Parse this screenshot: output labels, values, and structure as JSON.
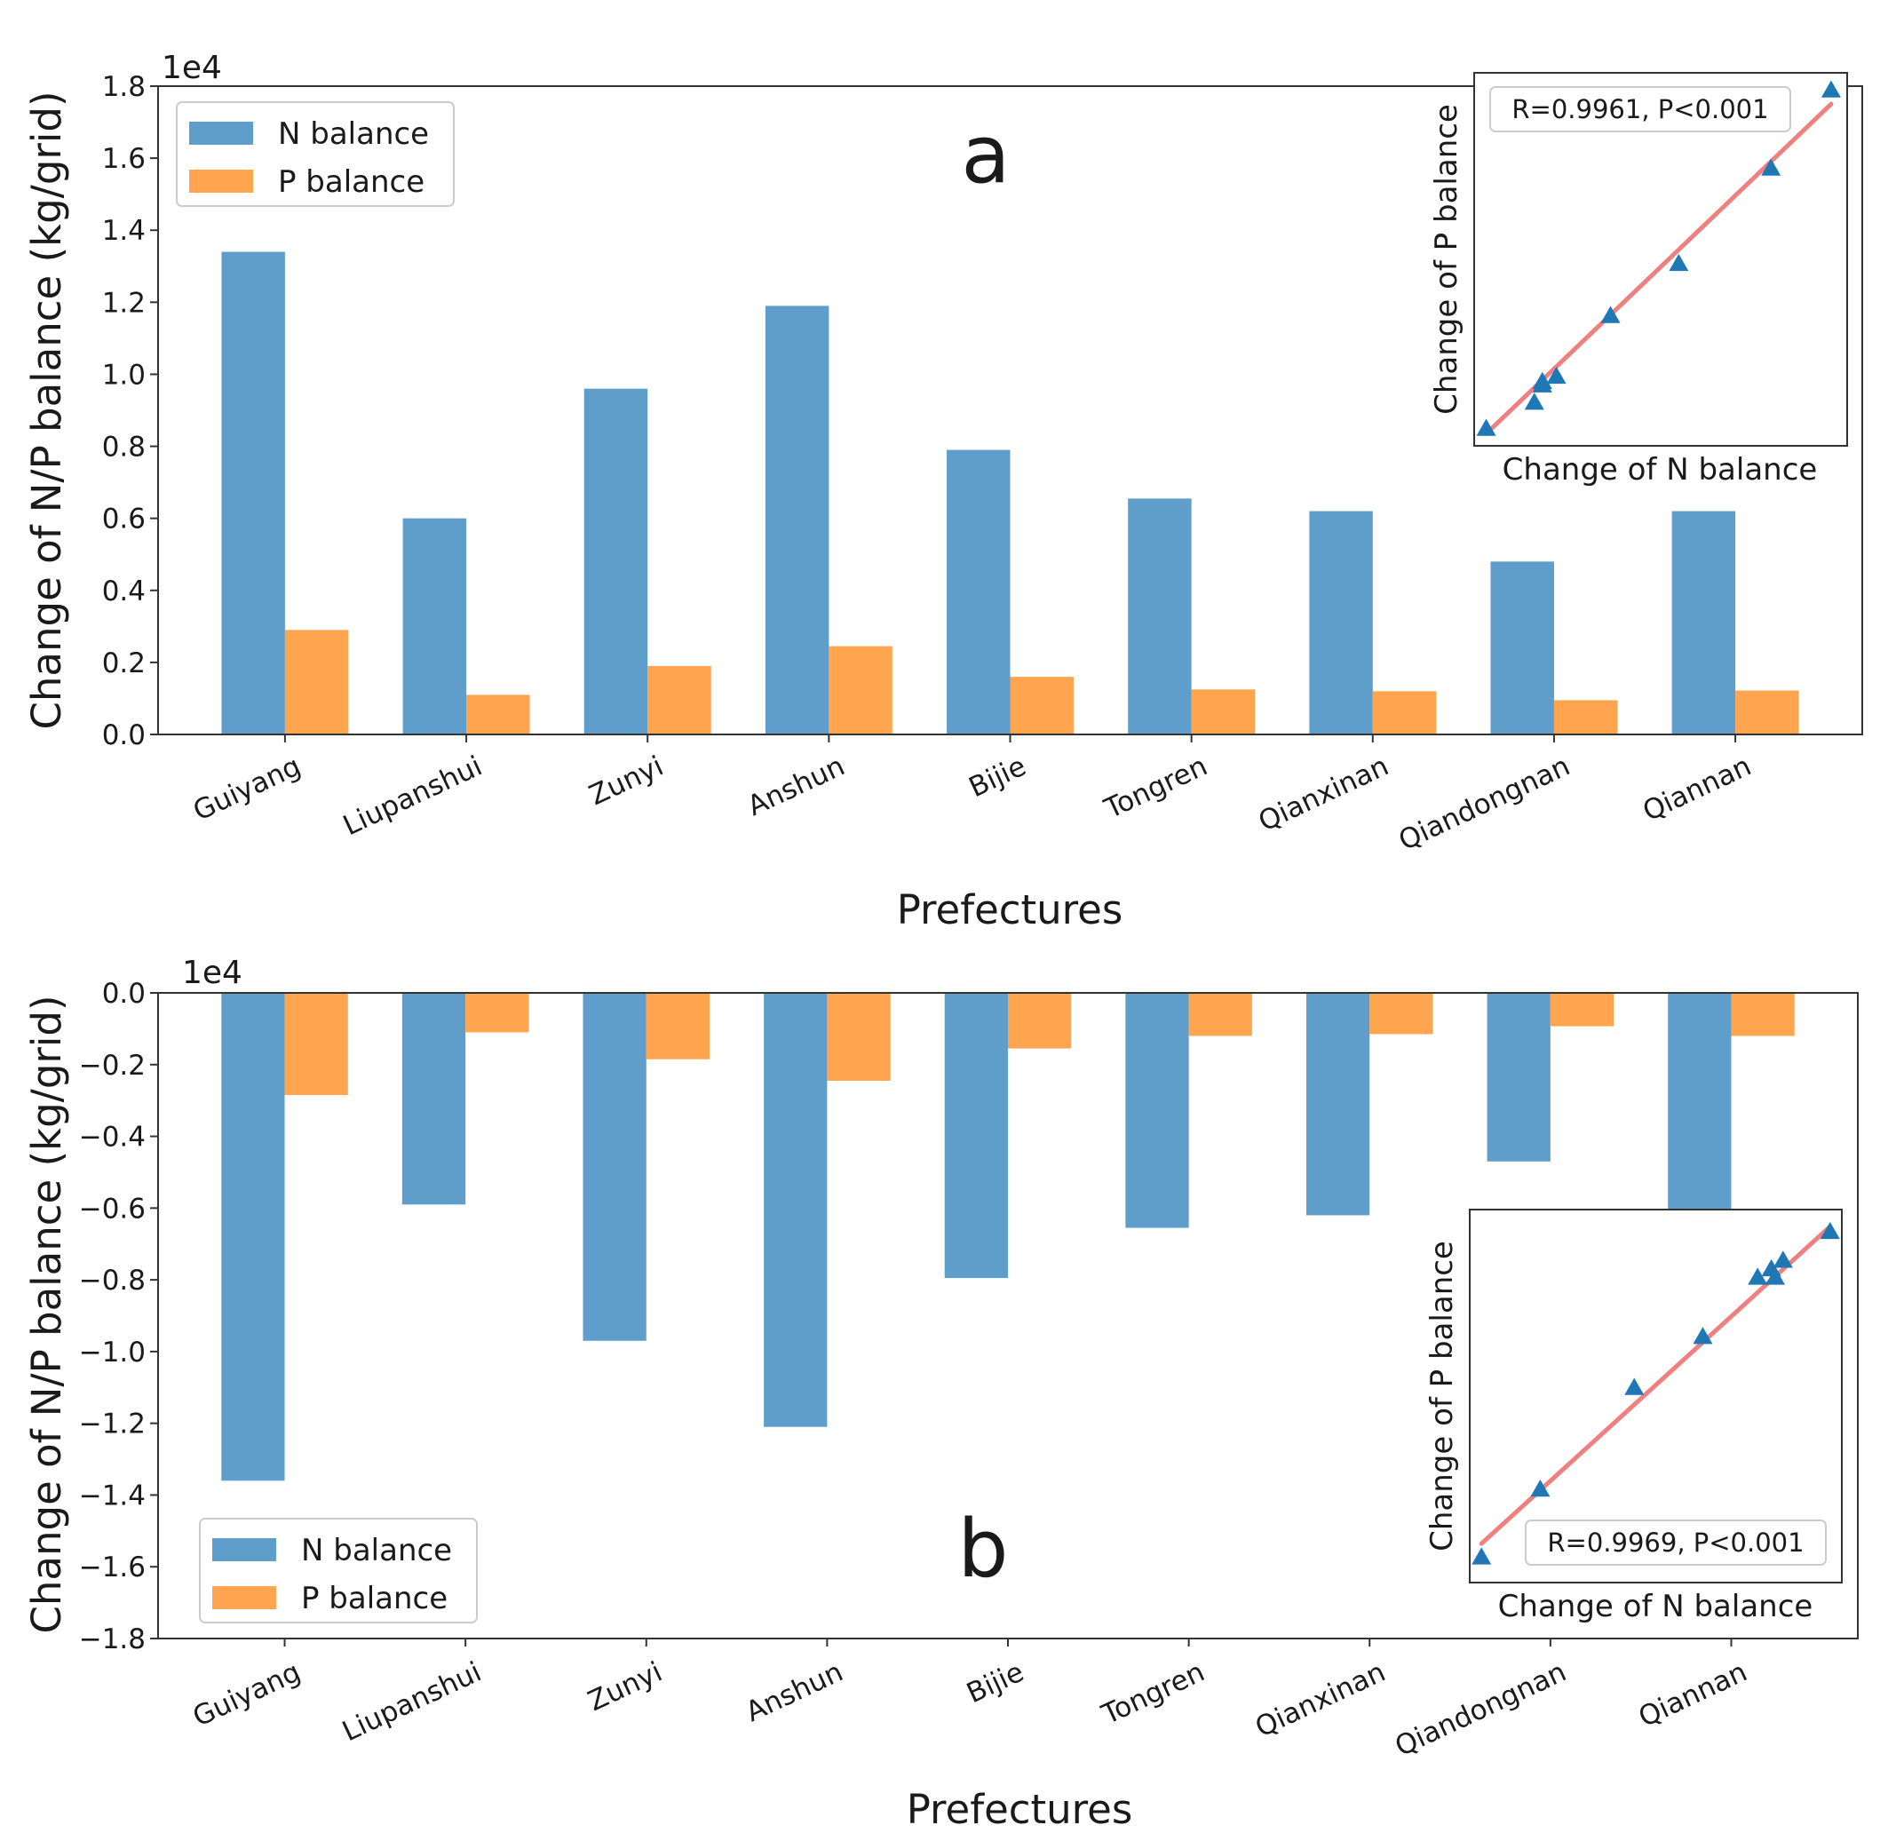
{
  "chart_data": [
    {
      "type": "bar",
      "panel_label": "a",
      "axis_multiplier": "1e4",
      "xlabel": "Prefectures",
      "ylabel": "Change of N/P balance (kg/grid)",
      "ylim": [
        0.0,
        1.8
      ],
      "yticks": [
        "0.0",
        "0.2",
        "0.4",
        "0.6",
        "0.8",
        "1.0",
        "1.2",
        "1.4",
        "1.6",
        "1.8"
      ],
      "categories": [
        "Guiyang",
        "Liupanshui",
        "Zunyi",
        "Anshun",
        "Bijie",
        "Tongren",
        "Qianxinan",
        "Qiandongnan",
        "Qiannan"
      ],
      "series": [
        {
          "name": "N balance",
          "color": "#5f9ecb",
          "values": [
            1.34,
            0.6,
            0.96,
            1.19,
            0.79,
            0.655,
            0.62,
            0.48,
            0.62
          ]
        },
        {
          "name": "P balance",
          "color": "#ffa54f",
          "values": [
            0.29,
            0.11,
            0.19,
            0.245,
            0.16,
            0.125,
            0.12,
            0.095,
            0.122
          ]
        }
      ],
      "legend": "upper-left",
      "inset": {
        "type": "scatter",
        "xlabel": "Change of N balance",
        "ylabel": "Change of P balance",
        "annotation": "R=0.9961, P<0.001",
        "point_color": "#1f77b4",
        "line_color": "#f08080",
        "xlim": [
          0.45,
          1.38
        ],
        "ylim": [
          0.085,
          0.3
        ],
        "x": [
          0.48,
          0.6,
          0.62,
          0.62,
          0.655,
          0.79,
          0.96,
          1.19,
          1.34
        ],
        "y": [
          0.095,
          0.11,
          0.12,
          0.122,
          0.125,
          0.16,
          0.19,
          0.245,
          0.29
        ],
        "fit": [
          [
            0.48,
            0.092
          ],
          [
            1.34,
            0.282
          ]
        ]
      }
    },
    {
      "type": "bar",
      "panel_label": "b",
      "axis_multiplier": "1e4",
      "xlabel": "Prefectures",
      "ylabel": "Change of N/P balance (kg/grid)",
      "ylim": [
        -1.8,
        0.0
      ],
      "yticks": [
        "0.0",
        "−0.2",
        "−0.4",
        "−0.6",
        "−0.8",
        "−1.0",
        "−1.2",
        "−1.4",
        "−1.6",
        "−1.8"
      ],
      "categories": [
        "Guiyang",
        "Liupanshui",
        "Zunyi",
        "Anshun",
        "Bijie",
        "Tongren",
        "Qianxinan",
        "Qiandongnan",
        "Qiannan"
      ],
      "series": [
        {
          "name": "N balance",
          "color": "#5f9ecb",
          "values": [
            -1.36,
            -0.59,
            -0.97,
            -1.21,
            -0.795,
            -0.655,
            -0.62,
            -0.47,
            -0.61
          ]
        },
        {
          "name": "P balance",
          "color": "#ffa54f",
          "values": [
            -0.285,
            -0.11,
            -0.185,
            -0.245,
            -0.155,
            -0.12,
            -0.115,
            -0.093,
            -0.12
          ]
        }
      ],
      "legend": "lower-left",
      "inset": {
        "type": "scatter",
        "xlabel": "Change of N balance",
        "ylabel": "Change of P balance",
        "annotation": "R=0.9969, P<0.001",
        "point_color": "#1f77b4",
        "line_color": "#f08080",
        "xlim": [
          -1.39,
          -0.44
        ],
        "ylim": [
          -0.3,
          -0.08
        ],
        "x": [
          -1.36,
          -1.21,
          -0.97,
          -0.795,
          -0.655,
          -0.62,
          -0.61,
          -0.59,
          -0.47
        ],
        "y": [
          -0.285,
          -0.245,
          -0.185,
          -0.155,
          -0.12,
          -0.115,
          -0.12,
          -0.11,
          -0.093
        ],
        "fit": [
          [
            -1.36,
            -0.277
          ],
          [
            -0.47,
            -0.09
          ]
        ]
      }
    }
  ]
}
